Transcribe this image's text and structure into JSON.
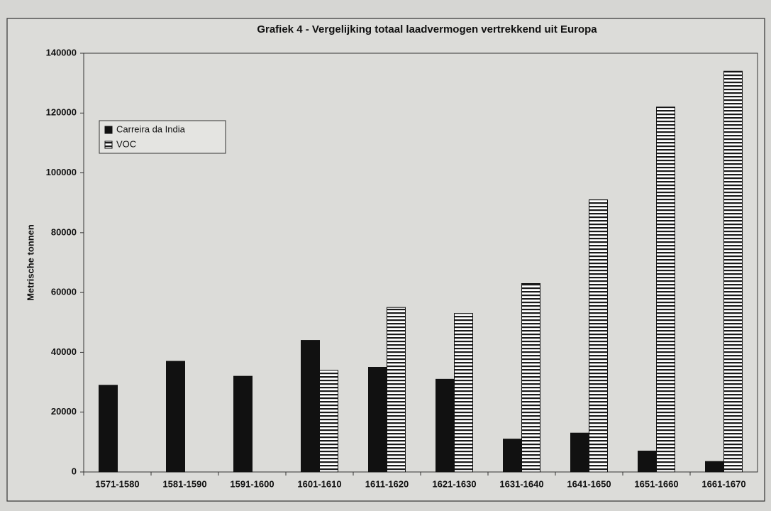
{
  "chart_data": {
    "type": "bar",
    "title": "Grafiek 4 - Vergelijking totaal laadvermogen vertrekkend uit Europa",
    "y_label": "Metrische tonnen",
    "categories": [
      "1571-1580",
      "1581-1590",
      "1591-1600",
      "1601-1610",
      "1611-1620",
      "1621-1630",
      "1631-1640",
      "1641-1650",
      "1651-1660",
      "1661-1670"
    ],
    "series": [
      {
        "name": "Carreira da India",
        "color": "#111111",
        "hatch": "solid",
        "values": [
          29000,
          37000,
          32000,
          44000,
          35000,
          31000,
          11000,
          13000,
          7000,
          3500
        ]
      },
      {
        "name": "VOC",
        "color": "#1a1a1a",
        "hatch": "horizontal",
        "values": [
          null,
          null,
          null,
          34000,
          55000,
          53000,
          63000,
          91000,
          122000,
          134000
        ]
      }
    ],
    "ylim": [
      0,
      140000
    ],
    "yticks": [
      0,
      20000,
      40000,
      60000,
      80000,
      100000,
      120000,
      140000
    ],
    "grid": false,
    "legend": "upper left"
  }
}
